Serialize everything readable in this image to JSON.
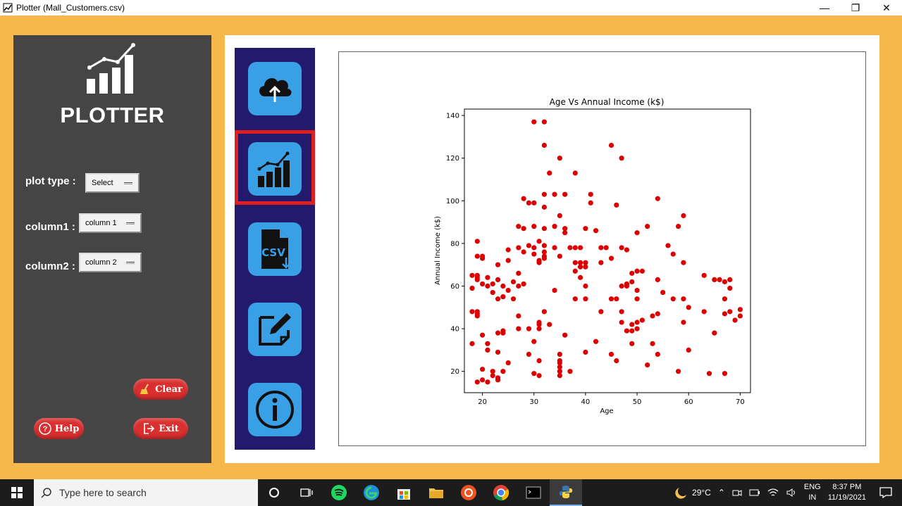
{
  "window": {
    "title": "Plotter  (Mall_Customers.csv)",
    "minimize": "—",
    "maximize": "❐",
    "close": "✕"
  },
  "sidebar": {
    "brand": "PLOTTER",
    "plot_type_label": "plot type :",
    "plot_type_value": "Select",
    "column1_label": "column1 :",
    "column1_value": "column 1",
    "column2_label": "column2 :",
    "column2_value": "column 2",
    "clear_label": "Clear",
    "help_label": "Help",
    "exit_label": "Exit"
  },
  "toolbar": {
    "items": [
      {
        "icon": "cloud-upload-icon"
      },
      {
        "icon": "bar-chart-icon",
        "selected": true
      },
      {
        "icon": "csv-download-icon"
      },
      {
        "icon": "edit-icon"
      },
      {
        "icon": "info-icon"
      }
    ]
  },
  "chart_data": {
    "type": "scatter",
    "title": "Age  Vs  Annual Income (k$)",
    "xlabel": "Age",
    "ylabel": "Annual Income (k$)",
    "xlim": [
      16.5,
      72
    ],
    "ylim": [
      10,
      143
    ],
    "xticks": [
      20,
      30,
      40,
      50,
      60,
      70
    ],
    "yticks": [
      20,
      40,
      60,
      80,
      100,
      120,
      140
    ],
    "color": "#dd0000",
    "points": [
      [
        30,
        137
      ],
      [
        32,
        137
      ],
      [
        32,
        126
      ],
      [
        45,
        126
      ],
      [
        35,
        120
      ],
      [
        47,
        120
      ],
      [
        33,
        113
      ],
      [
        38,
        113
      ],
      [
        28,
        101
      ],
      [
        29,
        99
      ],
      [
        30,
        99
      ],
      [
        32,
        103
      ],
      [
        34,
        103
      ],
      [
        36,
        103
      ],
      [
        41,
        103
      ],
      [
        32,
        97
      ],
      [
        41,
        99
      ],
      [
        46,
        98
      ],
      [
        54,
        101
      ],
      [
        35,
        93
      ],
      [
        59,
        93
      ],
      [
        27,
        88
      ],
      [
        28,
        87
      ],
      [
        30,
        88
      ],
      [
        32,
        87
      ],
      [
        34,
        88
      ],
      [
        36,
        87
      ],
      [
        36,
        85
      ],
      [
        40,
        87
      ],
      [
        42,
        86
      ],
      [
        50,
        85
      ],
      [
        52,
        88
      ],
      [
        58,
        88
      ],
      [
        32,
        79
      ],
      [
        34,
        78
      ],
      [
        37,
        78
      ],
      [
        38,
        78
      ],
      [
        39,
        78
      ],
      [
        43,
        78
      ],
      [
        44,
        78
      ],
      [
        47,
        78
      ],
      [
        48,
        77
      ],
      [
        56,
        79
      ],
      [
        57,
        75
      ],
      [
        25,
        77
      ],
      [
        27,
        78
      ],
      [
        28,
        76
      ],
      [
        29,
        79
      ],
      [
        30,
        78
      ],
      [
        31,
        81
      ],
      [
        32,
        76
      ],
      [
        32,
        74
      ],
      [
        30,
        75
      ],
      [
        31,
        72
      ],
      [
        31,
        71
      ],
      [
        32,
        73
      ],
      [
        35,
        74
      ],
      [
        38,
        71
      ],
      [
        39,
        71
      ],
      [
        40,
        71
      ],
      [
        40,
        69
      ],
      [
        39,
        69
      ],
      [
        38,
        67
      ],
      [
        39,
        64
      ],
      [
        40,
        60
      ],
      [
        43,
        71
      ],
      [
        45,
        73
      ],
      [
        59,
        71
      ],
      [
        18,
        65
      ],
      [
        19,
        65
      ],
      [
        19,
        64
      ],
      [
        19,
        63
      ],
      [
        19,
        81
      ],
      [
        19,
        74
      ],
      [
        20,
        74
      ],
      [
        20,
        73
      ],
      [
        21,
        64
      ],
      [
        20,
        61
      ],
      [
        18,
        59
      ],
      [
        21,
        60
      ],
      [
        22,
        61
      ],
      [
        23,
        63
      ],
      [
        24,
        60
      ],
      [
        25,
        72
      ],
      [
        26,
        62
      ],
      [
        27,
        60
      ],
      [
        27,
        66
      ],
      [
        28,
        61
      ],
      [
        23,
        70
      ],
      [
        22,
        57
      ],
      [
        23,
        54
      ],
      [
        24,
        55
      ],
      [
        25,
        58
      ],
      [
        26,
        54
      ],
      [
        34,
        58
      ],
      [
        38,
        54
      ],
      [
        40,
        54
      ],
      [
        45,
        54
      ],
      [
        46,
        54
      ],
      [
        47,
        60
      ],
      [
        48,
        61
      ],
      [
        48,
        60
      ],
      [
        49,
        62
      ],
      [
        50,
        58
      ],
      [
        50,
        54
      ],
      [
        50,
        67
      ],
      [
        51,
        67
      ],
      [
        49,
        66
      ],
      [
        54,
        63
      ],
      [
        55,
        57
      ],
      [
        57,
        54
      ],
      [
        59,
        54
      ],
      [
        60,
        50
      ],
      [
        63,
        65
      ],
      [
        65,
        63
      ],
      [
        66,
        63
      ],
      [
        67,
        62
      ],
      [
        68,
        63
      ],
      [
        68,
        59
      ],
      [
        67,
        54
      ],
      [
        18,
        48
      ],
      [
        19,
        47
      ],
      [
        19,
        46
      ],
      [
        19,
        48
      ],
      [
        20,
        37
      ],
      [
        21,
        33
      ],
      [
        18,
        33
      ],
      [
        23,
        38
      ],
      [
        24,
        38
      ],
      [
        24,
        39
      ],
      [
        22,
        20
      ],
      [
        22,
        18
      ],
      [
        23,
        16
      ],
      [
        21,
        15
      ],
      [
        20,
        16
      ],
      [
        19,
        15
      ],
      [
        20,
        21
      ],
      [
        21,
        30
      ],
      [
        23,
        29
      ],
      [
        24,
        20
      ],
      [
        25,
        24
      ],
      [
        23,
        17
      ],
      [
        27,
        46
      ],
      [
        27,
        40
      ],
      [
        29,
        40
      ],
      [
        29,
        28
      ],
      [
        30,
        34
      ],
      [
        30,
        19
      ],
      [
        31,
        18
      ],
      [
        31,
        43
      ],
      [
        31,
        42
      ],
      [
        31,
        40
      ],
      [
        31,
        25
      ],
      [
        32,
        48
      ],
      [
        33,
        42
      ],
      [
        35,
        28
      ],
      [
        35,
        25
      ],
      [
        35,
        24
      ],
      [
        35,
        22
      ],
      [
        35,
        20
      ],
      [
        35,
        18
      ],
      [
        36,
        37
      ],
      [
        37,
        20
      ],
      [
        40,
        29
      ],
      [
        42,
        34
      ],
      [
        43,
        48
      ],
      [
        45,
        28
      ],
      [
        46,
        25
      ],
      [
        47,
        48
      ],
      [
        47,
        43
      ],
      [
        48,
        39
      ],
      [
        49,
        39
      ],
      [
        49,
        42
      ],
      [
        49,
        33
      ],
      [
        50,
        40
      ],
      [
        50,
        43
      ],
      [
        51,
        44
      ],
      [
        52,
        23
      ],
      [
        53,
        46
      ],
      [
        53,
        33
      ],
      [
        54,
        47
      ],
      [
        54,
        28
      ],
      [
        58,
        20
      ],
      [
        59,
        43
      ],
      [
        60,
        30
      ],
      [
        63,
        48
      ],
      [
        64,
        19
      ],
      [
        65,
        38
      ],
      [
        67,
        47
      ],
      [
        67,
        19
      ],
      [
        68,
        48
      ],
      [
        69,
        44
      ],
      [
        70,
        46
      ],
      [
        70,
        49
      ]
    ]
  },
  "taskbar": {
    "search_placeholder": "Type here to search",
    "temperature": "29°C",
    "language_top": "ENG",
    "language_bottom": "IN",
    "time": "8:37 PM",
    "date": "11/19/2021"
  }
}
